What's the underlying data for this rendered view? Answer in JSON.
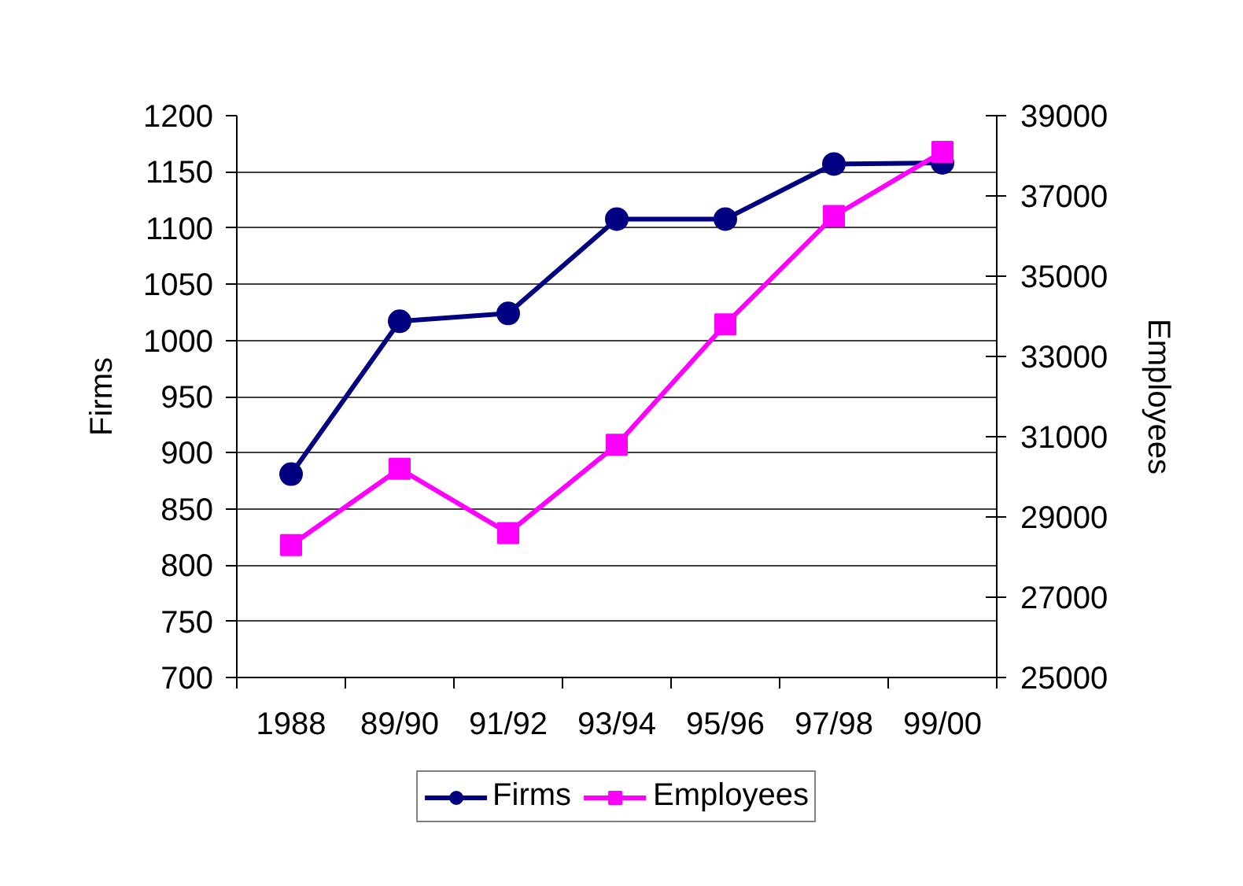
{
  "chart_data": {
    "type": "line",
    "categories": [
      "1988",
      "89/90",
      "91/92",
      "93/94",
      "95/96",
      "97/98",
      "99/00"
    ],
    "series": [
      {
        "name": "Firms",
        "color": "#000080",
        "marker": "circle",
        "values": [
          881,
          1017,
          1024,
          1108,
          1108,
          1157,
          1158
        ]
      },
      {
        "name": "Employees",
        "color": "#ff00ff",
        "marker": "square",
        "axis": "y2",
        "values": [
          28300,
          30200,
          28600,
          30800,
          33800,
          36500,
          38100
        ]
      }
    ],
    "ylabel": "Firms",
    "y2label": "Employees",
    "ylim": [
      700,
      1200
    ],
    "yticks": [
      700,
      750,
      800,
      850,
      900,
      950,
      1000,
      1050,
      1100,
      1150,
      1200
    ],
    "y2lim": [
      25000,
      39000
    ],
    "y2ticks": [
      25000,
      27000,
      29000,
      31000,
      33000,
      35000,
      37000,
      39000
    ],
    "grid": "y",
    "legend": "bottom",
    "line_style": "solid"
  }
}
